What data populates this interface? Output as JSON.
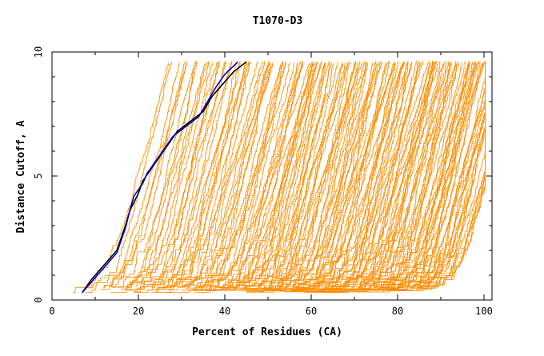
{
  "chart_data": {
    "type": "line",
    "title": "T1070-D3",
    "xlabel": "Percent of Residues (CA)",
    "ylabel": "Distance Cutoff, A",
    "xlim": [
      0,
      102
    ],
    "ylim": [
      0,
      10
    ],
    "x_ticks": [
      0,
      20,
      40,
      60,
      80,
      100
    ],
    "y_ticks": [
      0,
      5,
      10
    ],
    "x_tick_labels": [
      "0",
      "20",
      "40",
      "60",
      "80",
      "100"
    ],
    "y_tick_labels": [
      "0",
      "5",
      "10"
    ],
    "grid": false,
    "legend": "none",
    "colors": {
      "models": "#ff8c00",
      "highlight_black": "#000000",
      "highlight_blue": "#0000cd"
    },
    "band_summary": {
      "description_levels_y": [
        0.3,
        0.5,
        1,
        2,
        3,
        4,
        5,
        6,
        7,
        8,
        9,
        9.6
      ],
      "leftmost_x": [
        5,
        7,
        11,
        13,
        15,
        16,
        17,
        18,
        19,
        20,
        22,
        23
      ],
      "rightmost_x": [
        74,
        88,
        92,
        95,
        96,
        97,
        97,
        98,
        99,
        99,
        100,
        100
      ]
    },
    "series": [
      {
        "color": "black",
        "x": [
          7,
          9,
          11,
          13,
          15,
          16,
          17,
          18,
          20,
          21,
          23,
          25,
          27,
          29,
          32,
          35,
          37,
          40,
          42,
          45
        ],
        "y": [
          0.3,
          0.8,
          1.2,
          1.6,
          2.0,
          2.5,
          3.0,
          3.6,
          4.3,
          4.8,
          5.3,
          5.8,
          6.3,
          6.8,
          7.2,
          7.6,
          8.2,
          8.8,
          9.2,
          9.6
        ]
      },
      {
        "color": "blue",
        "x": [
          7,
          9,
          11,
          13,
          15,
          16,
          17,
          18,
          19,
          21,
          22,
          24,
          26,
          28,
          31,
          34,
          36,
          38,
          40,
          43
        ],
        "y": [
          0.3,
          0.7,
          1.1,
          1.5,
          1.9,
          2.4,
          2.9,
          3.6,
          4.2,
          4.7,
          5.1,
          5.6,
          6.1,
          6.6,
          7.0,
          7.4,
          8.0,
          8.6,
          9.1,
          9.6
        ]
      }
    ]
  }
}
